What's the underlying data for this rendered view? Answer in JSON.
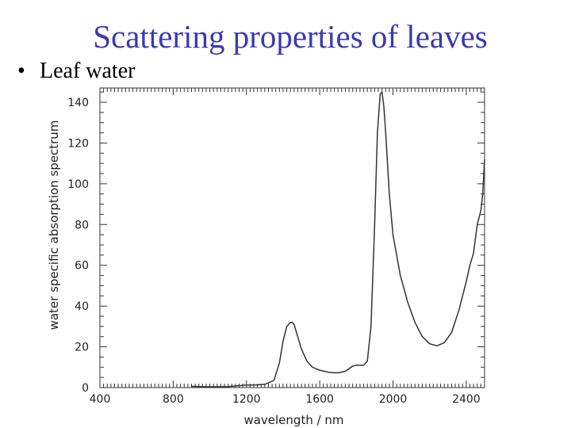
{
  "slide": {
    "title": "Scattering properties of leaves",
    "bullet": "Leaf water",
    "bullet_marker": "•"
  },
  "chart_data": {
    "type": "line",
    "title": "",
    "xlabel": "wavelength / nm",
    "ylabel": "water specific absorption spectrum",
    "xlim": [
      400,
      2500
    ],
    "ylim": [
      0,
      147
    ],
    "xticks": [
      400,
      800,
      1200,
      1600,
      2000,
      2400
    ],
    "yticks": [
      0,
      20,
      40,
      60,
      80,
      100,
      120,
      140
    ],
    "grid": false,
    "line_color": "#333333",
    "series": [
      {
        "name": "water",
        "x": [
          900,
          1000,
          1100,
          1150,
          1200,
          1250,
          1300,
          1350,
          1380,
          1400,
          1420,
          1440,
          1450,
          1460,
          1480,
          1500,
          1530,
          1560,
          1600,
          1650,
          1700,
          1740,
          1780,
          1800,
          1840,
          1860,
          1880,
          1900,
          1915,
          1930,
          1940,
          1950,
          1960,
          1980,
          2000,
          2040,
          2080,
          2120,
          2160,
          2200,
          2240,
          2280,
          2320,
          2360,
          2400,
          2420,
          2440,
          2460,
          2480,
          2490,
          2500
        ],
        "y": [
          0.6,
          0.4,
          0.5,
          0.9,
          1.2,
          1.3,
          1.6,
          3.5,
          12,
          23,
          30,
          32,
          32,
          31,
          25,
          19,
          13,
          10,
          8.5,
          7.5,
          7.2,
          8,
          10.5,
          11,
          11,
          13,
          30,
          80,
          125,
          144,
          145,
          138,
          125,
          95,
          75,
          55,
          42,
          32,
          25,
          21.5,
          20.5,
          22,
          27,
          38,
          52,
          60,
          66,
          80,
          87,
          95,
          112
        ]
      }
    ]
  }
}
